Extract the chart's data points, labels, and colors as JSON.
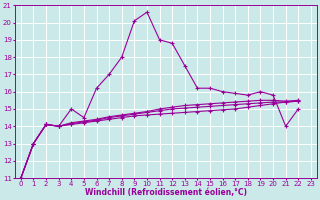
{
  "xlabel": "Windchill (Refroidissement éolien,°C)",
  "bg_color": "#cce9e9",
  "grid_color": "#ffffff",
  "line_color": "#990099",
  "xlim": [
    -0.5,
    23.5
  ],
  "ylim": [
    11,
    21
  ],
  "xticks": [
    0,
    1,
    2,
    3,
    4,
    5,
    6,
    7,
    8,
    9,
    10,
    11,
    12,
    13,
    14,
    15,
    16,
    17,
    18,
    19,
    20,
    21,
    22,
    23
  ],
  "yticks": [
    11,
    12,
    13,
    14,
    15,
    16,
    17,
    18,
    19,
    20,
    21
  ],
  "series": [
    [
      11,
      13,
      14.1,
      14.0,
      15.0,
      14.5,
      16.2,
      17.0,
      18.0,
      20.1,
      20.6,
      19.0,
      18.8,
      17.5,
      16.2,
      16.2,
      16.0,
      15.9,
      15.8,
      16.0,
      15.8,
      14.0,
      15.0
    ],
    [
      11,
      13,
      14.1,
      14.0,
      14.1,
      14.2,
      14.3,
      14.4,
      14.5,
      14.6,
      14.65,
      14.7,
      14.75,
      14.8,
      14.85,
      14.9,
      14.95,
      15.0,
      15.1,
      15.2,
      15.3,
      15.4,
      15.45
    ],
    [
      11,
      13,
      14.1,
      14.0,
      14.15,
      14.25,
      14.35,
      14.5,
      14.6,
      14.7,
      14.8,
      14.9,
      15.0,
      15.05,
      15.1,
      15.15,
      15.2,
      15.25,
      15.3,
      15.35,
      15.4,
      15.4,
      15.45
    ],
    [
      11,
      13,
      14.1,
      14.0,
      14.2,
      14.3,
      14.4,
      14.55,
      14.65,
      14.75,
      14.85,
      15.0,
      15.1,
      15.2,
      15.25,
      15.3,
      15.35,
      15.4,
      15.45,
      15.5,
      15.5,
      15.45,
      15.5
    ]
  ],
  "marker": "+",
  "markersize": 3,
  "linewidth": 0.8,
  "tick_fontsize": 5.0,
  "xlabel_fontsize": 5.5
}
